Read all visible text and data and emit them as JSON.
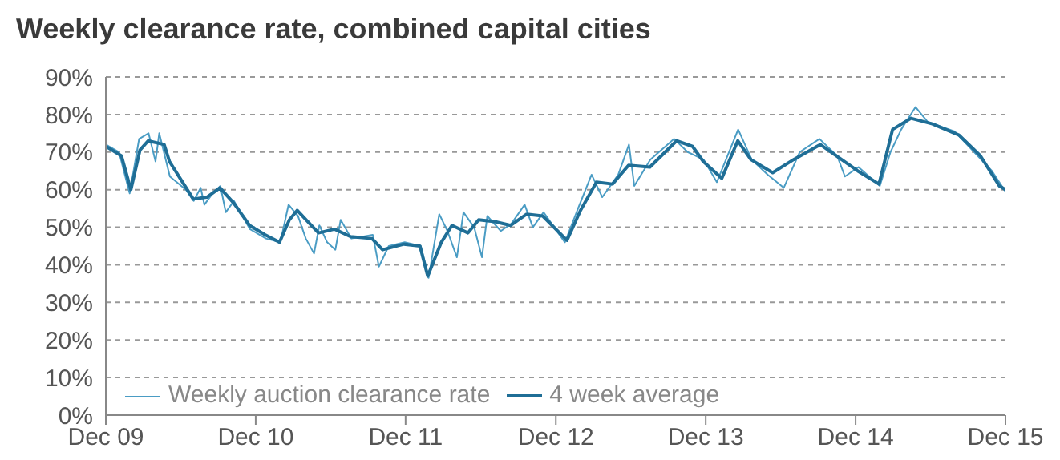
{
  "chart_data": {
    "type": "line",
    "title": "Weekly clearance rate, combined capital cities",
    "xlim": [
      "2009-12-01",
      "2015-12-01"
    ],
    "xticks": [
      {
        "value": "2009-12-01",
        "label": "Dec 09"
      },
      {
        "value": "2010-12-01",
        "label": "Dec 10"
      },
      {
        "value": "2011-12-01",
        "label": "Dec 11"
      },
      {
        "value": "2012-12-01",
        "label": "Dec 12"
      },
      {
        "value": "2013-12-01",
        "label": "Dec 13"
      },
      {
        "value": "2014-12-01",
        "label": "Dec 14"
      },
      {
        "value": "2015-12-01",
        "label": "Dec 15"
      }
    ],
    "ylim": [
      0,
      90
    ],
    "yticks": [
      {
        "value": 0,
        "label": "0%"
      },
      {
        "value": 10,
        "label": "10%"
      },
      {
        "value": 20,
        "label": "20%"
      },
      {
        "value": 30,
        "label": "30%"
      },
      {
        "value": 40,
        "label": "40%"
      },
      {
        "value": 50,
        "label": "50%"
      },
      {
        "value": 60,
        "label": "60%"
      },
      {
        "value": 70,
        "label": "70%"
      },
      {
        "value": 80,
        "label": "80%"
      },
      {
        "value": 90,
        "label": "90%"
      }
    ],
    "grid": "y",
    "legend": "bottom left",
    "marker": "none",
    "line_style": "solid",
    "series": [
      {
        "name": "Weekly auction clearance rate",
        "color": "#4a9cc4",
        "x": [
          "2009-12-01",
          "2010-01-02",
          "2010-01-28",
          "2010-02-20",
          "2010-03-15",
          "2010-04-01",
          "2010-04-10",
          "2010-05-06",
          "2010-06-14",
          "2010-07-03",
          "2010-07-20",
          "2010-07-29",
          "2010-08-18",
          "2010-09-06",
          "2010-09-19",
          "2010-10-09",
          "2010-11-17",
          "2010-12-26",
          "2011-01-30",
          "2011-02-19",
          "2011-03-14",
          "2011-04-02",
          "2011-04-22",
          "2011-05-05",
          "2011-05-24",
          "2011-06-13",
          "2011-06-26",
          "2011-07-22",
          "2011-09-12",
          "2011-09-27",
          "2011-10-21",
          "2011-11-29",
          "2012-01-07",
          "2012-01-26",
          "2012-02-21",
          "2012-03-12",
          "2012-04-04",
          "2012-04-20",
          "2012-05-16",
          "2012-06-04",
          "2012-06-17",
          "2012-07-20",
          "2012-08-15",
          "2012-09-16",
          "2012-10-06",
          "2012-11-01",
          "2012-12-23",
          "2013-01-24",
          "2013-02-26",
          "2013-03-24",
          "2013-05-02",
          "2013-05-28",
          "2013-06-10",
          "2013-07-19",
          "2013-09-15",
          "2013-10-18",
          "2013-11-26",
          "2013-12-28",
          "2014-02-18",
          "2014-03-23",
          "2014-05-01",
          "2014-06-09",
          "2014-07-18",
          "2014-09-04",
          "2014-10-17",
          "2014-11-05",
          "2014-12-08",
          "2015-01-29",
          "2015-02-24",
          "2015-03-22",
          "2015-04-26",
          "2015-05-26",
          "2015-07-30",
          "2015-09-07",
          "2015-10-29",
          "2015-12-01"
        ],
        "values": [
          72,
          70,
          59,
          73.5,
          75,
          67.5,
          75,
          63.5,
          60,
          57,
          60.5,
          56,
          59,
          61,
          54,
          57,
          49.5,
          47,
          46,
          56,
          53,
          47,
          43,
          50.5,
          46,
          44,
          52,
          47,
          48,
          39.5,
          45,
          46,
          45,
          36.5,
          53.5,
          49,
          42,
          54,
          50,
          42,
          53,
          49,
          51,
          56,
          50,
          54,
          46,
          55,
          64,
          58,
          64,
          72,
          61,
          68,
          73.5,
          70,
          68,
          62,
          76,
          68,
          64,
          60.5,
          70,
          73.5,
          69,
          63.5,
          66,
          61,
          70,
          76,
          82,
          78,
          75.5,
          71,
          65,
          59.5
        ]
      },
      {
        "name": "4 week average",
        "color": "#1f6e96",
        "x": [
          "2009-12-01",
          "2010-01-08",
          "2010-01-31",
          "2010-02-22",
          "2010-03-14",
          "2010-04-22",
          "2010-05-05",
          "2010-05-31",
          "2010-07-02",
          "2010-08-04",
          "2010-09-05",
          "2010-10-08",
          "2010-11-16",
          "2010-12-24",
          "2011-01-28",
          "2011-02-21",
          "2011-03-12",
          "2011-04-07",
          "2011-05-03",
          "2011-06-11",
          "2011-07-20",
          "2011-09-10",
          "2011-10-06",
          "2011-11-27",
          "2012-01-05",
          "2012-01-24",
          "2012-02-26",
          "2012-03-23",
          "2012-05-01",
          "2012-05-27",
          "2012-07-05",
          "2012-08-13",
          "2012-09-21",
          "2012-10-30",
          "2012-12-28",
          "2013-01-30",
          "2013-03-10",
          "2013-04-18",
          "2013-05-27",
          "2013-07-18",
          "2013-09-21",
          "2013-10-30",
          "2013-11-25",
          "2014-01-09",
          "2014-02-17",
          "2014-03-21",
          "2014-05-13",
          "2014-07-03",
          "2014-09-06",
          "2014-10-28",
          "2014-12-06",
          "2015-01-27",
          "2015-03-01",
          "2015-04-15",
          "2015-06-06",
          "2015-08-10",
          "2015-10-01",
          "2015-11-16",
          "2015-12-01"
        ],
        "values": [
          71.5,
          69,
          60,
          70.5,
          73,
          72,
          67.5,
          63,
          57.5,
          58,
          60.5,
          56.5,
          50.5,
          48,
          46,
          52,
          54.5,
          51.5,
          48.5,
          49.5,
          47.5,
          47,
          44,
          45.5,
          45,
          37,
          46,
          50.5,
          48.5,
          52,
          51.5,
          50.5,
          53.5,
          53,
          46.5,
          54.5,
          62,
          61.5,
          66.5,
          66,
          73,
          71.5,
          67.5,
          63,
          73,
          68,
          64.5,
          68,
          72,
          68,
          65,
          61.5,
          76,
          79,
          77.5,
          74.5,
          69,
          61,
          60
        ]
      }
    ]
  }
}
